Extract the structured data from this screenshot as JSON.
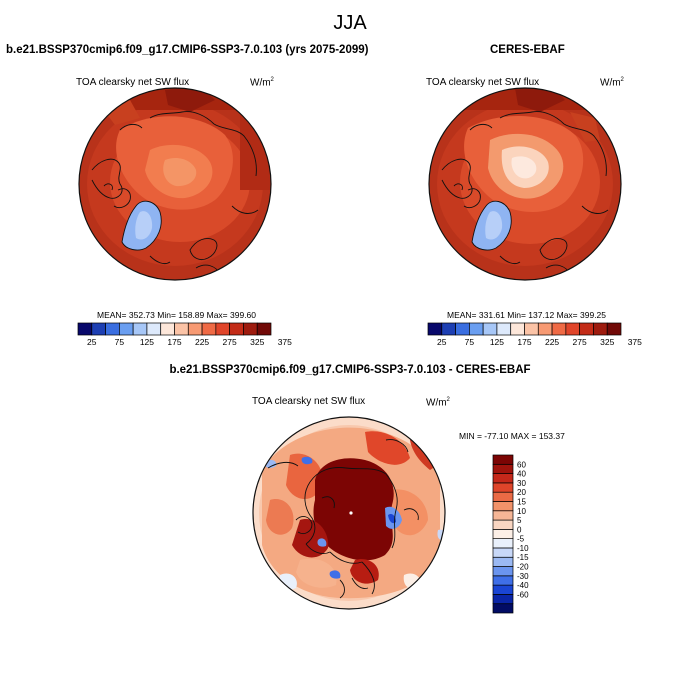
{
  "page": {
    "season_title": "JJA"
  },
  "panels": {
    "model": {
      "title": "b.e21.BSSP370cmip6.f09_g17.CMIP6-SSP3-7.0.103 (yrs 2075-2099)",
      "variable_label": "TOA clearsky net SW flux",
      "units_base": "W/m",
      "units_exp": "2",
      "stats": "MEAN= 352.73  Min= 158.89  Max= 399.60"
    },
    "obs": {
      "title": "CERES-EBAF",
      "variable_label": "TOA clearsky net SW flux",
      "units_base": "W/m",
      "units_exp": "2",
      "stats": "MEAN= 331.61  Min= 137.12  Max= 399.25"
    },
    "diff": {
      "title": "b.e21.BSSP370cmip6.f09_g17.CMIP6-SSP3-7.0.103 - CERES-EBAF",
      "variable_label": "TOA clearsky net SW flux",
      "units_base": "W/m",
      "units_exp": "2",
      "stats": "MIN = -77.10 MAX = 153.37"
    }
  },
  "colorbars": {
    "absolute": {
      "orientation": "horizontal",
      "colors": [
        "#08086b",
        "#1d3fb3",
        "#3a6ee0",
        "#6a9ef0",
        "#a7c7f7",
        "#dde9fb",
        "#fde7da",
        "#fbc3a6",
        "#f79a73",
        "#ef6a45",
        "#e0452a",
        "#c32b17",
        "#9e1b0e",
        "#710907"
      ],
      "tick_labels": [
        "25",
        "75",
        "125",
        "175",
        "225",
        "275",
        "325",
        "375"
      ]
    },
    "difference": {
      "orientation": "vertical",
      "colors": [
        "#020c64",
        "#0a25a7",
        "#1a45d4",
        "#3f6fe8",
        "#6b95ef",
        "#9bb9f3",
        "#c8d8f8",
        "#e9f0fb",
        "#fcefe6",
        "#f9d6c2",
        "#f6b696",
        "#f19269",
        "#ea6a45",
        "#df452a",
        "#c5281a",
        "#9f130c",
        "#7c0504"
      ],
      "tick_labels": [
        "60",
        "40",
        "30",
        "20",
        "15",
        "10",
        "5",
        "0",
        "-5",
        "-10",
        "-15",
        "-20",
        "-30",
        "-40",
        "-60"
      ]
    }
  },
  "chart_data": [
    {
      "type": "heatmap",
      "projection": "north-polar-stereographic",
      "title": "b.e21.BSSP370cmip6.f09_g17.CMIP6-SSP3-7.0.103 (yrs 2075-2099)",
      "variable": "TOA clearsky net SW flux",
      "units": "W/m2",
      "season": "JJA",
      "stats": {
        "mean": 352.73,
        "min": 158.89,
        "max": 399.6
      },
      "contour_levels": [
        25,
        50,
        75,
        100,
        125,
        150,
        175,
        200,
        225,
        250,
        275,
        300,
        325,
        350,
        375
      ]
    },
    {
      "type": "heatmap",
      "projection": "north-polar-stereographic",
      "title": "CERES-EBAF",
      "variable": "TOA clearsky net SW flux",
      "units": "W/m2",
      "season": "JJA",
      "stats": {
        "mean": 331.61,
        "min": 137.12,
        "max": 399.25
      },
      "contour_levels": [
        25,
        50,
        75,
        100,
        125,
        150,
        175,
        200,
        225,
        250,
        275,
        300,
        325,
        350,
        375
      ]
    },
    {
      "type": "heatmap",
      "projection": "north-polar-stereographic",
      "title": "b.e21.BSSP370cmip6.f09_g17.CMIP6-SSP3-7.0.103 - CERES-EBAF",
      "variable": "TOA clearsky net SW flux",
      "units": "W/m2",
      "season": "JJA",
      "stats": {
        "min": -77.1,
        "max": 153.37
      },
      "contour_levels": [
        -60,
        -40,
        -30,
        -20,
        -15,
        -10,
        -5,
        0,
        5,
        10,
        15,
        20,
        30,
        40,
        60
      ]
    }
  ]
}
